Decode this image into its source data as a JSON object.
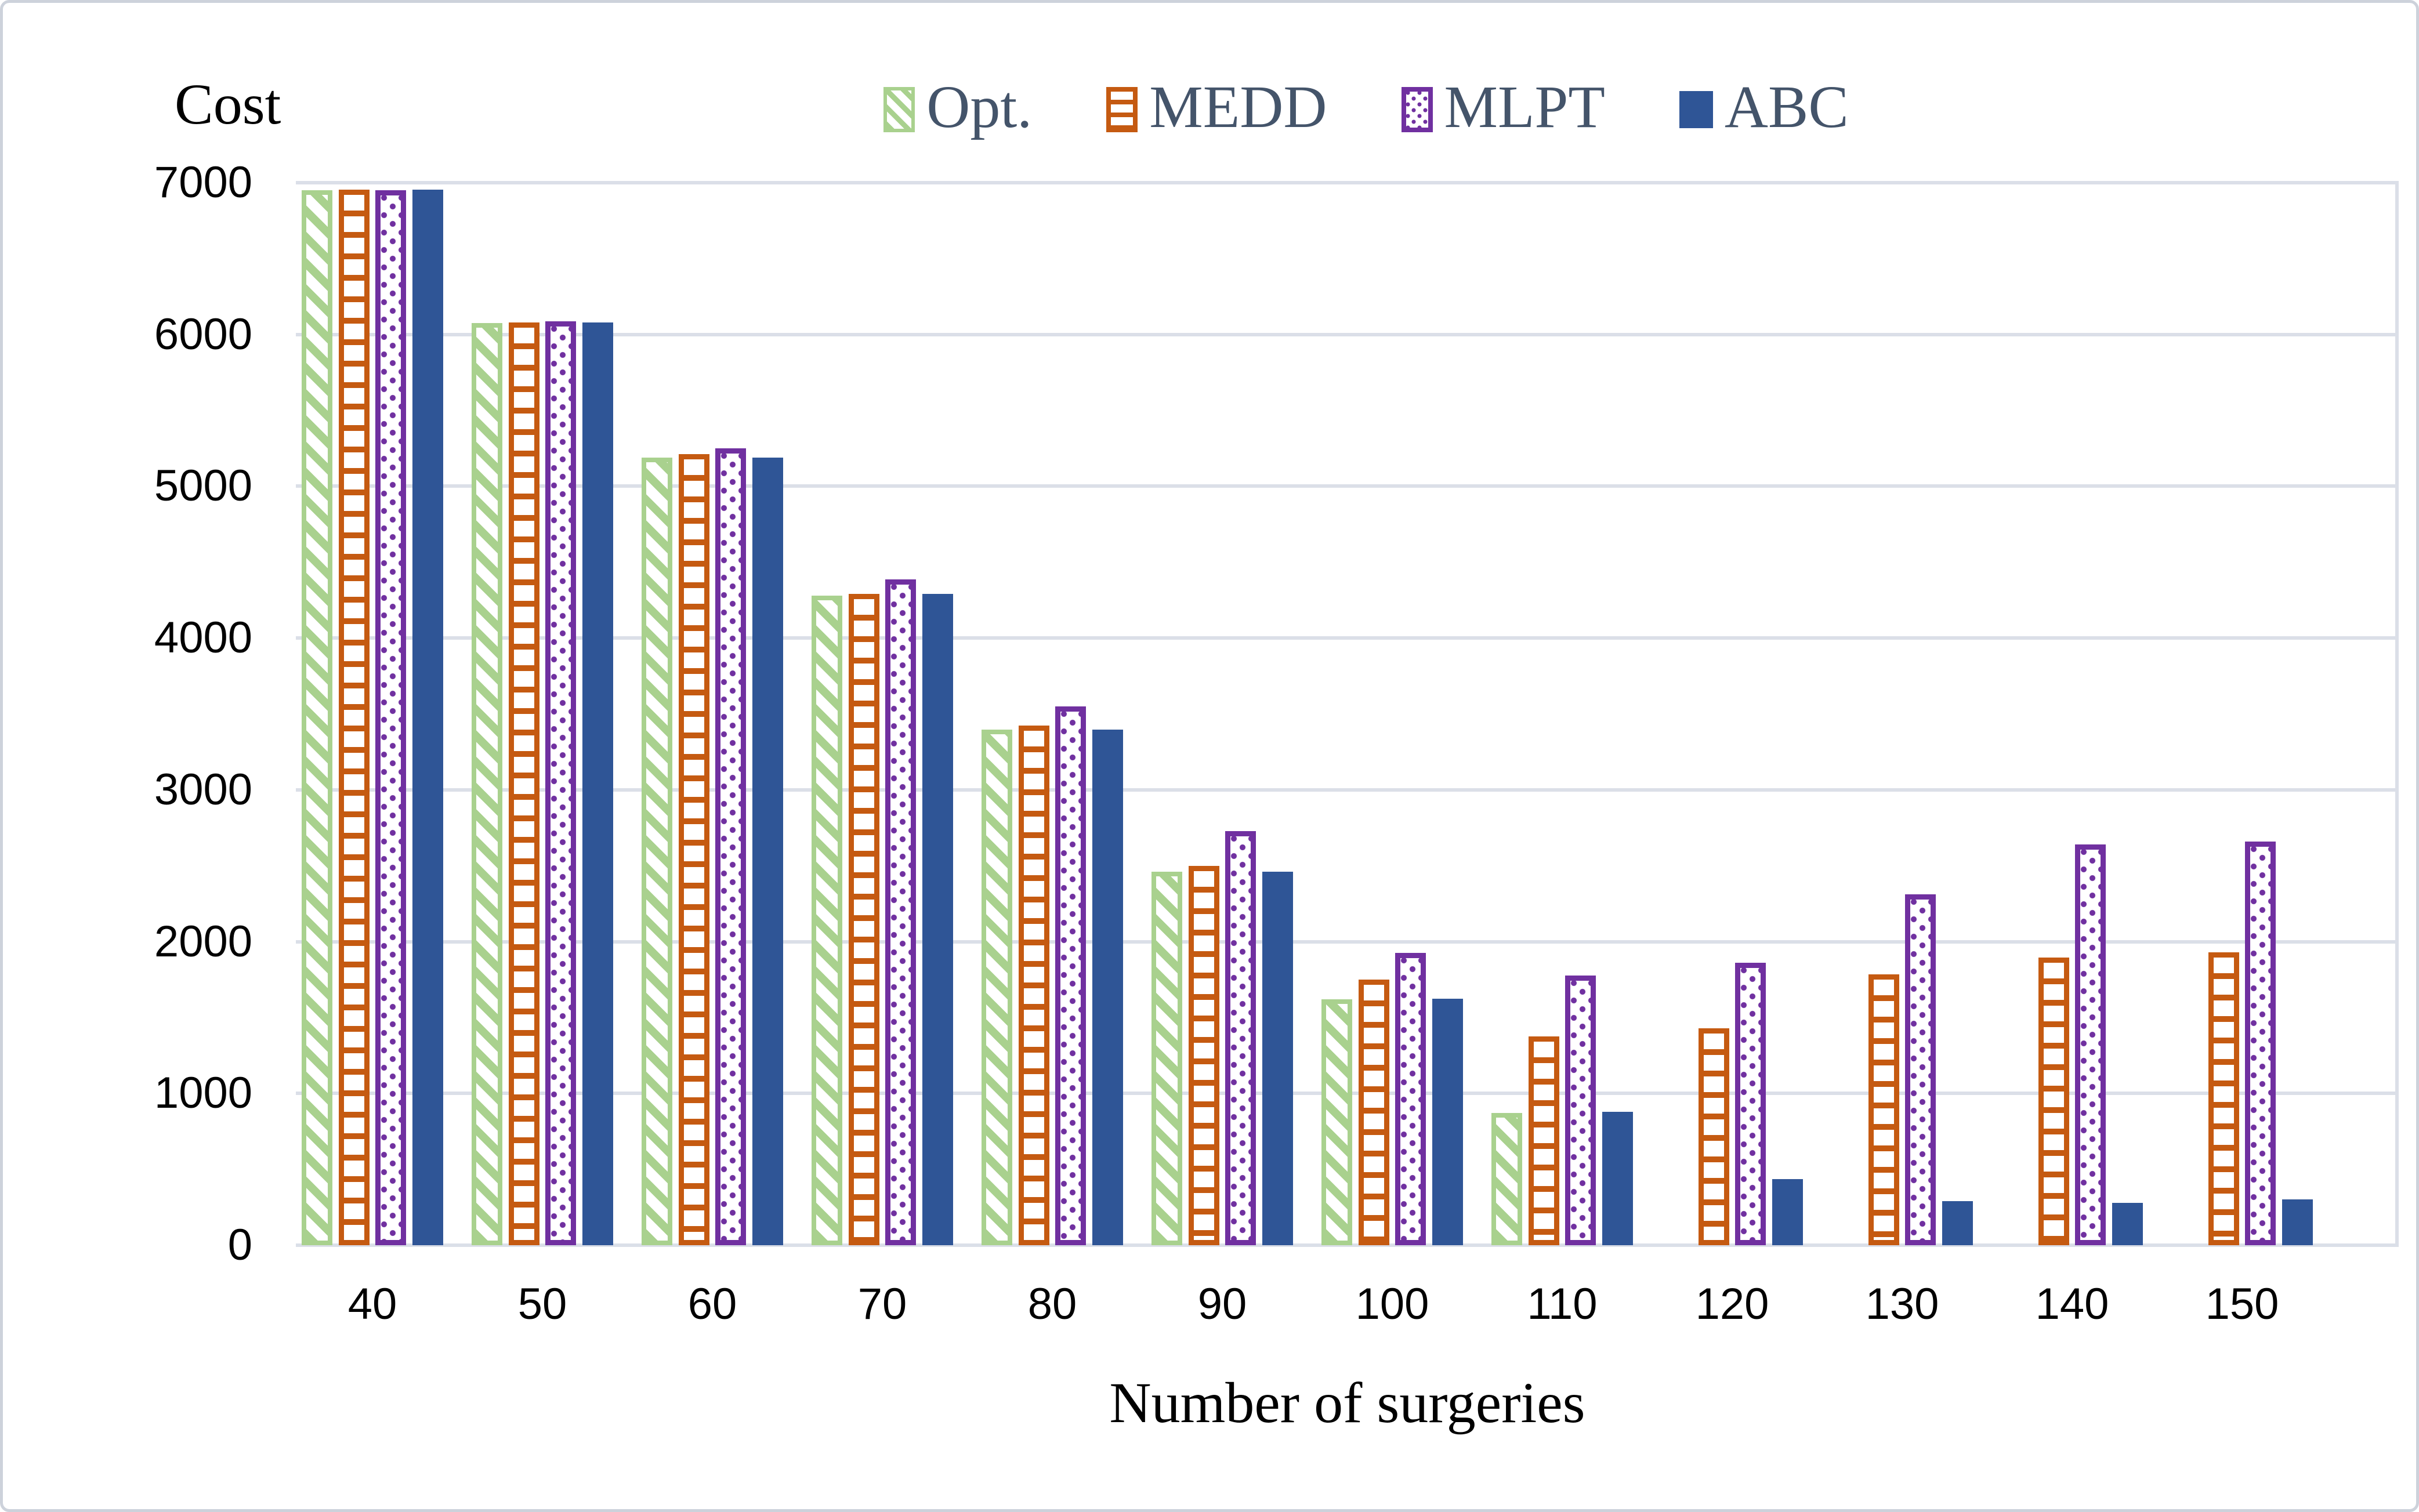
{
  "y_axis_title": "Cost",
  "x_axis_title": "Number of surgeries",
  "colors": {
    "opt_green": "#A9D18E",
    "medd_orange": "#C55A11",
    "mlpt_purple": "#7030A0",
    "abc_blue": "#2F5596",
    "gridline": "#dbdfe8",
    "legend_text": "#44546A",
    "tick_text": "#000000"
  },
  "chart_data": {
    "type": "bar",
    "title": "",
    "xlabel": "Number of surgeries",
    "ylabel": "Cost",
    "ylim": [
      0,
      7000
    ],
    "ytick_step": 1000,
    "ytick_labels": [
      "7000",
      "6000",
      "5000",
      "4000",
      "3000",
      "2000",
      "1000",
      "0"
    ],
    "grid": true,
    "legend_position": "top",
    "categories": [
      "40",
      "50",
      "60",
      "70",
      "80",
      "90",
      "100",
      "110",
      "120",
      "130",
      "140",
      "150"
    ],
    "series": [
      {
        "name": "Opt.",
        "pattern": "diagonal-stripe",
        "color": "#A9D18E",
        "values": [
          6950,
          6075,
          5190,
          4280,
          3395,
          2460,
          1620,
          870,
          null,
          null,
          null,
          null
        ]
      },
      {
        "name": "MEDD",
        "pattern": "horizontal-lines",
        "color": "#C55A11",
        "values": [
          6955,
          6080,
          5210,
          4290,
          3425,
          2500,
          1750,
          1375,
          1430,
          1785,
          1895,
          1930
        ]
      },
      {
        "name": "MLPT",
        "pattern": "dots",
        "color": "#7030A0",
        "values": [
          6950,
          6085,
          5250,
          4385,
          3550,
          2730,
          1925,
          1775,
          1860,
          2310,
          2640,
          2660
        ]
      },
      {
        "name": "ABC",
        "pattern": "solid",
        "color": "#2F5596",
        "values": [
          6955,
          6080,
          5190,
          4290,
          3395,
          2460,
          1625,
          880,
          435,
          290,
          280,
          300
        ]
      }
    ]
  }
}
